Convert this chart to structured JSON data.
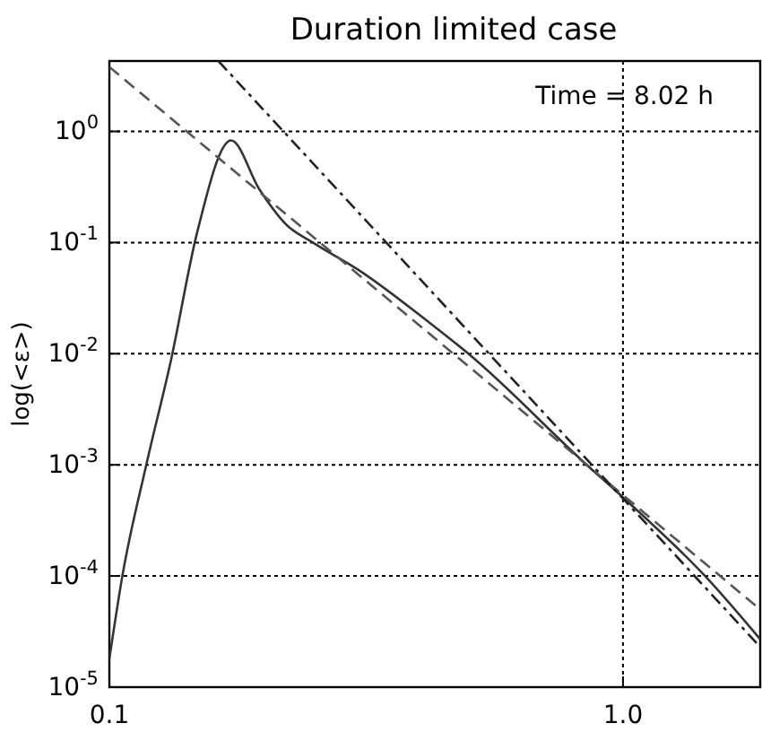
{
  "chart_data": {
    "type": "line",
    "title": "Duration limited case",
    "ylabel": "log(<ε>)",
    "annotations": [
      "Time = 8.02 h"
    ],
    "log": "xy",
    "grid": true,
    "marker": "none",
    "xlim": [
      0.1,
      1.85
    ],
    "ylim": [
      1e-05,
      4.3
    ],
    "xticks": [
      0.1,
      {
        "value": 1,
        "label": "1.0"
      }
    ],
    "yticks": [
      {
        "value": 1e-05,
        "label": "10$^{-5}$"
      },
      {
        "value": 0.0001,
        "label": "10$^{-4}$"
      },
      {
        "value": 0.001,
        "label": "10$^{-3}$"
      },
      {
        "value": 0.01,
        "label": "10$^{-2}$"
      },
      {
        "value": 0.1,
        "label": "10$^{-1}$"
      },
      {
        "value": 1,
        "label": "10$^{0}$"
      }
    ],
    "series": [
      {
        "color": "#333333",
        "line_style": "solid",
        "x": [
          0.1,
          0.106,
          0.118,
          0.132,
          0.148,
          0.1726,
          0.196,
          0.221,
          0.249,
          0.305,
          0.42,
          0.5,
          0.85,
          1.0,
          1.46,
          1.85
        ],
        "values": [
          1.8e-05,
          0.0001,
          0.001,
          0.009,
          0.12,
          0.83,
          0.3,
          0.145,
          0.1,
          0.057,
          0.019,
          0.01,
          0.001,
          0.00051,
          9.5e-05,
          2.7e-05
        ]
      },
      {
        "color": "#555555",
        "line_style": "dashed",
        "x": [
          0.1,
          1.85
        ],
        "values": [
          3.8,
          5e-05
        ]
      },
      {
        "color": "#222222",
        "line_style": "dashdot",
        "x": [
          0.163,
          1.85
        ],
        "values": [
          4.3,
          2.3e-05
        ]
      }
    ]
  }
}
